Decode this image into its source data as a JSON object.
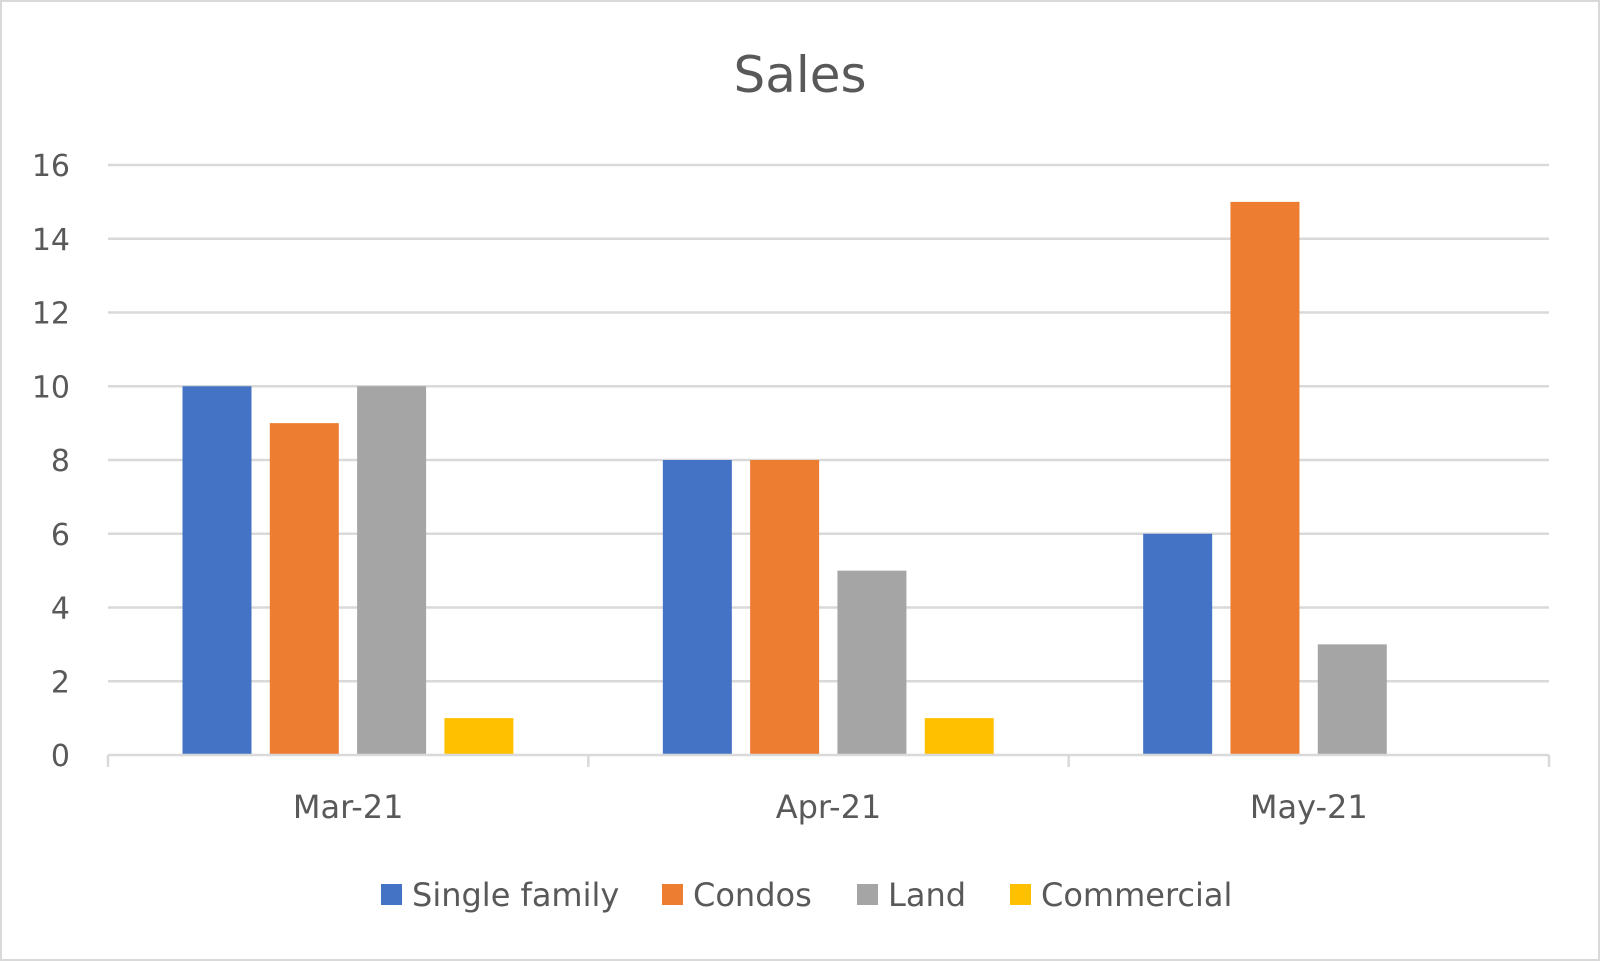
{
  "chart_data": {
    "type": "bar",
    "title": "Sales",
    "categories": [
      "Mar-21",
      "Apr-21",
      "May-21"
    ],
    "series": [
      {
        "name": "Single family",
        "color": "#4472C4",
        "values": [
          10,
          8,
          6
        ]
      },
      {
        "name": "Condos",
        "color": "#ED7D31",
        "values": [
          9,
          8,
          15
        ]
      },
      {
        "name": "Land",
        "color": "#A5A5A5",
        "values": [
          10,
          5,
          3
        ]
      },
      {
        "name": "Commercial",
        "color": "#FFC000",
        "values": [
          1,
          1,
          0
        ]
      }
    ],
    "xlabel": "",
    "ylabel": "",
    "ylim": [
      0,
      16
    ],
    "yticks": [
      "0",
      "2",
      "4",
      "6",
      "8",
      "10",
      "12",
      "14",
      "16"
    ],
    "grid": true,
    "legend": "bottom"
  }
}
